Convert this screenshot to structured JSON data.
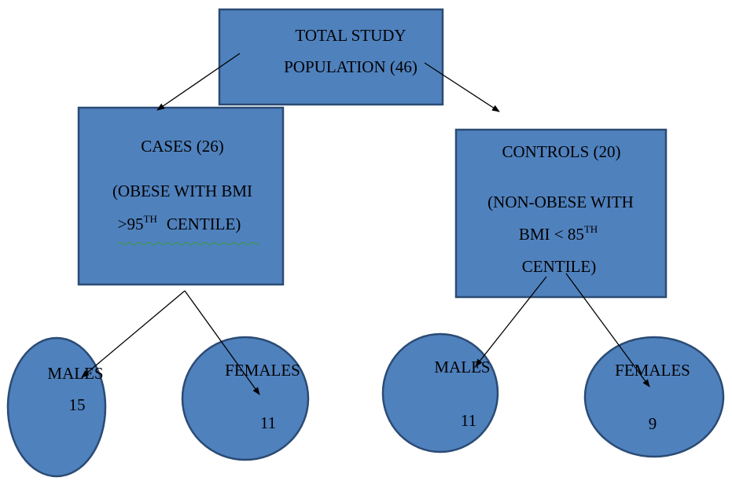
{
  "nodes": [
    {
      "lines": [
        "TOTAL STUDY",
        "POPULATION (46)"
      ]
    },
    {
      "title": "CASES (26)",
      "lines": [
        "(OBESE WITH BMI",
        ">95",
        "TH",
        "CENTILE)"
      ]
    },
    {
      "title": "CONTROLS (20)",
      "lines": [
        "(NON-OBESE WITH",
        "BMI < 85",
        "TH",
        "CENTILE)"
      ]
    },
    {
      "label": "MALES",
      "count": "15"
    },
    {
      "label": "FEMALES",
      "count": "11"
    },
    {
      "label": "MALES",
      "count": "11"
    },
    {
      "label": "FEMALES",
      "count": "9"
    }
  ]
}
